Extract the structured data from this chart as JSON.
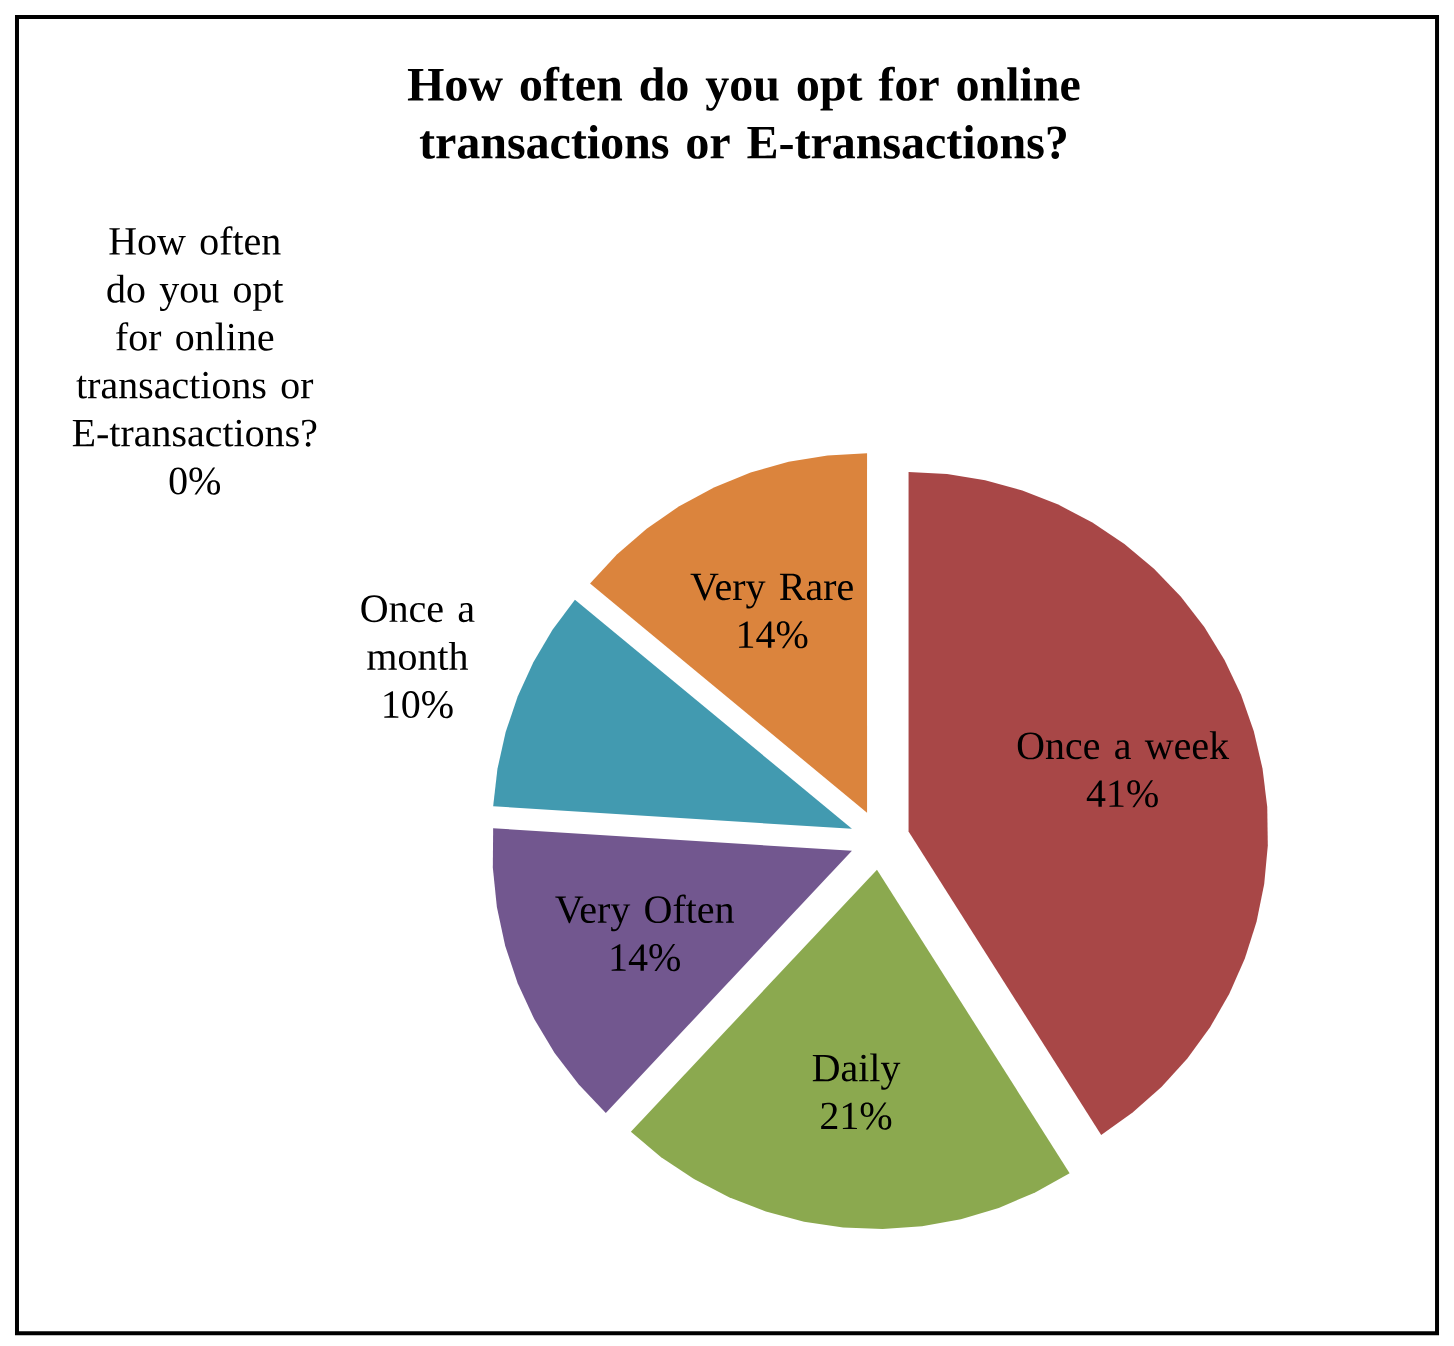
{
  "chart_data": {
    "type": "pie",
    "title": "How often do you opt for online transactions or E-transactions?",
    "categories": [
      "How often do you opt for online transactions or E-transactions?",
      "Once a week",
      "Daily",
      "Very Often",
      "Once a month",
      "Very Rare"
    ],
    "values": [
      0,
      41,
      21,
      14,
      10,
      14
    ],
    "colors": [
      "#4f81bd",
      "#a84747",
      "#8ba94f",
      "#72578f",
      "#429ab0",
      "#db843d"
    ],
    "value_labels": [
      "0%",
      "41%",
      "21%",
      "14%",
      "10%",
      "14%"
    ]
  }
}
